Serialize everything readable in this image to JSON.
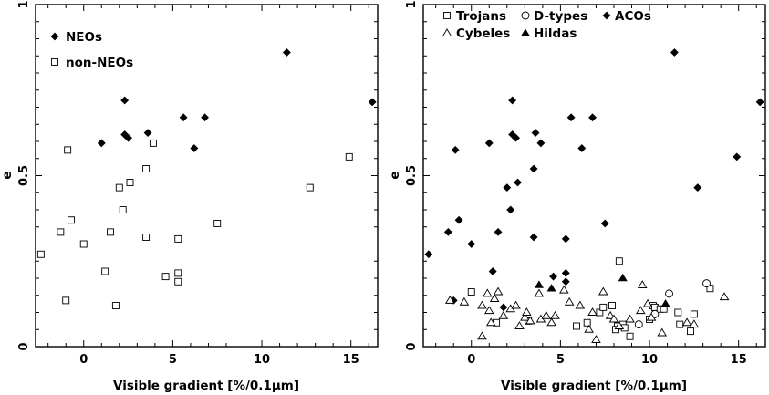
{
  "chart_data": [
    {
      "type": "scatter",
      "xlabel": "Visible gradient [%/0.1μm]",
      "ylabel": "e",
      "xlim": [
        -2.7,
        16.5
      ],
      "ylim": [
        0,
        1
      ],
      "xticks": [
        0,
        5,
        10,
        15
      ],
      "yticks": [
        0,
        0.5,
        1
      ],
      "xtick_labels": [
        "0",
        "5",
        "10",
        "15"
      ],
      "ytick_labels": [
        "0",
        "0.5",
        "1"
      ],
      "legend_position": "top-left",
      "series": [
        {
          "name": "NEOs",
          "marker": "filled-diamond",
          "points": [
            [
              1.0,
              0.595
            ],
            [
              2.3,
              0.72
            ],
            [
              2.3,
              0.62
            ],
            [
              2.5,
              0.61
            ],
            [
              3.6,
              0.625
            ],
            [
              5.6,
              0.67
            ],
            [
              6.2,
              0.58
            ],
            [
              6.8,
              0.67
            ],
            [
              11.4,
              0.86
            ],
            [
              16.2,
              0.715
            ]
          ]
        },
        {
          "name": "non-NEOs",
          "marker": "open-square",
          "points": [
            [
              -2.4,
              0.27
            ],
            [
              -1.3,
              0.335
            ],
            [
              -0.9,
              0.575
            ],
            [
              -0.7,
              0.37
            ],
            [
              -1.0,
              0.135
            ],
            [
              0.0,
              0.3
            ],
            [
              1.2,
              0.22
            ],
            [
              1.5,
              0.335
            ],
            [
              1.8,
              0.12
            ],
            [
              2.0,
              0.465
            ],
            [
              2.2,
              0.4
            ],
            [
              2.6,
              0.48
            ],
            [
              3.5,
              0.52
            ],
            [
              3.5,
              0.32
            ],
            [
              3.9,
              0.595
            ],
            [
              4.6,
              0.205
            ],
            [
              5.3,
              0.215
            ],
            [
              5.3,
              0.19
            ],
            [
              5.3,
              0.315
            ],
            [
              7.5,
              0.36
            ],
            [
              12.7,
              0.465
            ],
            [
              14.9,
              0.555
            ]
          ]
        }
      ]
    },
    {
      "type": "scatter",
      "xlabel": "Visible gradient [%/0.1μm]",
      "ylabel": "e",
      "xlim": [
        -2.7,
        16.5
      ],
      "ylim": [
        0,
        1
      ],
      "xticks": [
        0,
        5,
        10,
        15
      ],
      "yticks": [
        0,
        0.5,
        1
      ],
      "xtick_labels": [
        "0",
        "5",
        "10",
        "15"
      ],
      "ytick_labels": [
        "0",
        "0.5",
        "1"
      ],
      "legend_position": "top",
      "series": [
        {
          "name": "Trojans",
          "marker": "open-square",
          "points": [
            [
              0.0,
              0.16
            ],
            [
              1.4,
              0.07
            ],
            [
              3.2,
              0.075
            ],
            [
              5.9,
              0.06
            ],
            [
              6.5,
              0.07
            ],
            [
              7.2,
              0.1
            ],
            [
              7.4,
              0.115
            ],
            [
              7.9,
              0.12
            ],
            [
              8.3,
              0.25
            ],
            [
              8.2,
              0.06
            ],
            [
              8.5,
              0.065
            ],
            [
              8.6,
              0.055
            ],
            [
              8.9,
              0.03
            ],
            [
              10.0,
              0.08
            ],
            [
              10.2,
              0.12
            ],
            [
              10.3,
              0.115
            ],
            [
              10.6,
              0.11
            ],
            [
              10.8,
              0.11
            ],
            [
              11.6,
              0.1
            ],
            [
              11.7,
              0.065
            ],
            [
              12.3,
              0.045
            ],
            [
              12.5,
              0.095
            ],
            [
              13.4,
              0.17
            ],
            [
              8.1,
              0.05
            ]
          ]
        },
        {
          "name": "D-types",
          "marker": "open-circle",
          "points": [
            [
              9.4,
              0.065
            ],
            [
              10.3,
              0.095
            ],
            [
              11.1,
              0.155
            ],
            [
              13.2,
              0.185
            ]
          ]
        },
        {
          "name": "ACOs",
          "marker": "filled-diamond",
          "points": [
            [
              -2.4,
              0.27
            ],
            [
              -1.3,
              0.335
            ],
            [
              -0.9,
              0.575
            ],
            [
              -0.7,
              0.37
            ],
            [
              0.0,
              0.3
            ],
            [
              1.0,
              0.595
            ],
            [
              1.2,
              0.22
            ],
            [
              1.5,
              0.335
            ],
            [
              2.0,
              0.465
            ],
            [
              2.2,
              0.4
            ],
            [
              2.3,
              0.72
            ],
            [
              2.3,
              0.62
            ],
            [
              2.5,
              0.61
            ],
            [
              2.6,
              0.48
            ],
            [
              3.5,
              0.52
            ],
            [
              3.6,
              0.625
            ],
            [
              3.5,
              0.32
            ],
            [
              3.9,
              0.595
            ],
            [
              4.6,
              0.205
            ],
            [
              5.3,
              0.215
            ],
            [
              5.3,
              0.315
            ],
            [
              5.6,
              0.67
            ],
            [
              6.2,
              0.58
            ],
            [
              6.8,
              0.67
            ],
            [
              7.5,
              0.36
            ],
            [
              11.4,
              0.86
            ],
            [
              12.7,
              0.465
            ],
            [
              14.9,
              0.555
            ],
            [
              16.2,
              0.715
            ],
            [
              -1.0,
              0.135
            ],
            [
              1.8,
              0.115
            ],
            [
              5.3,
              0.19
            ]
          ]
        },
        {
          "name": "Cybeles",
          "marker": "open-triangle",
          "points": [
            [
              -1.2,
              0.135
            ],
            [
              -0.4,
              0.13
            ],
            [
              0.6,
              0.12
            ],
            [
              0.9,
              0.155
            ],
            [
              1.0,
              0.105
            ],
            [
              1.1,
              0.07
            ],
            [
              1.3,
              0.14
            ],
            [
              1.5,
              0.16
            ],
            [
              1.8,
              0.09
            ],
            [
              2.2,
              0.11
            ],
            [
              2.5,
              0.12
            ],
            [
              3.0,
              0.085
            ],
            [
              3.1,
              0.1
            ],
            [
              3.3,
              0.075
            ],
            [
              3.8,
              0.155
            ],
            [
              3.9,
              0.08
            ],
            [
              4.2,
              0.09
            ],
            [
              4.5,
              0.07
            ],
            [
              4.7,
              0.09
            ],
            [
              5.2,
              0.165
            ],
            [
              5.5,
              0.13
            ],
            [
              6.1,
              0.12
            ],
            [
              6.6,
              0.05
            ],
            [
              6.8,
              0.1
            ],
            [
              7.4,
              0.16
            ],
            [
              7.8,
              0.09
            ],
            [
              8.0,
              0.08
            ],
            [
              8.3,
              0.06
            ],
            [
              8.9,
              0.08
            ],
            [
              9.6,
              0.18
            ],
            [
              9.9,
              0.125
            ],
            [
              10.1,
              0.085
            ],
            [
              10.7,
              0.04
            ],
            [
              12.1,
              0.07
            ],
            [
              12.5,
              0.065
            ],
            [
              14.2,
              0.145
            ],
            [
              0.6,
              0.03
            ],
            [
              7.0,
              0.02
            ],
            [
              2.7,
              0.06
            ],
            [
              9.5,
              0.105
            ]
          ]
        },
        {
          "name": "Hildas",
          "marker": "filled-triangle",
          "points": [
            [
              3.8,
              0.18
            ],
            [
              4.5,
              0.17
            ],
            [
              8.5,
              0.2
            ],
            [
              10.9,
              0.125
            ]
          ]
        }
      ]
    }
  ]
}
